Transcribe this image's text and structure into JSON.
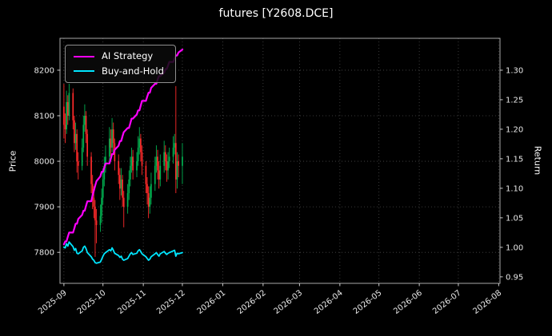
{
  "title": "futures [Y2608.DCE]",
  "colors": {
    "background": "#000000",
    "text": "#ffffff",
    "tick_label": "#e8e8e8",
    "grid": "#4a4a4a",
    "spine": "#a8a8a8",
    "candle_up": "#00b050",
    "candle_down": "#ff2a2a"
  },
  "chart_data": {
    "type": "candlestick+line",
    "title": "futures [Y2608.DCE]",
    "grid": true,
    "legend_position": "upper-left",
    "axes": {
      "x": {
        "range": [
          "2025-08-29",
          "2026-08-02"
        ],
        "ticks": [
          {
            "label": "2025-09",
            "date": "2025-09-01"
          },
          {
            "label": "2025-10",
            "date": "2025-10-01"
          },
          {
            "label": "2025-11",
            "date": "2025-11-01"
          },
          {
            "label": "2025-12",
            "date": "2025-12-01"
          },
          {
            "label": "2026-01",
            "date": "2026-01-01"
          },
          {
            "label": "2026-02",
            "date": "2026-02-01"
          },
          {
            "label": "2026-03",
            "date": "2026-03-01"
          },
          {
            "label": "2026-04",
            "date": "2026-04-01"
          },
          {
            "label": "2026-05",
            "date": "2026-05-01"
          },
          {
            "label": "2026-06",
            "date": "2026-06-01"
          },
          {
            "label": "2026-07",
            "date": "2026-07-01"
          },
          {
            "label": "2026-08",
            "date": "2026-08-01"
          }
        ]
      },
      "y_left": {
        "label": "Price",
        "range": [
          7732,
          8270
        ],
        "ticks": [
          {
            "label": "7800",
            "value": 7800
          },
          {
            "label": "7900",
            "value": 7900
          },
          {
            "label": "8000",
            "value": 8000
          },
          {
            "label": "8100",
            "value": 8100
          },
          {
            "label": "8200",
            "value": 8200
          }
        ]
      },
      "y_right": {
        "label": "Return",
        "range": [
          0.939,
          1.354
        ],
        "ticks": [
          {
            "label": "0.95",
            "value": 0.95
          },
          {
            "label": "1.00",
            "value": 1.0
          },
          {
            "label": "1.05",
            "value": 1.05
          },
          {
            "label": "1.10",
            "value": 1.1
          },
          {
            "label": "1.15",
            "value": 1.15
          },
          {
            "label": "1.20",
            "value": 1.2
          },
          {
            "label": "1.25",
            "value": 1.25
          },
          {
            "label": "1.30",
            "value": 1.3
          }
        ]
      }
    },
    "candles": {
      "dates": [
        "2025-09-01",
        "2025-09-02",
        "2025-09-03",
        "2025-09-04",
        "2025-09-05",
        "2025-09-08",
        "2025-09-09",
        "2025-09-10",
        "2025-09-11",
        "2025-09-12",
        "2025-09-15",
        "2025-09-16",
        "2025-09-17",
        "2025-09-18",
        "2025-09-19",
        "2025-09-22",
        "2025-09-23",
        "2025-09-24",
        "2025-09-25",
        "2025-09-26",
        "2025-09-29",
        "2025-09-30",
        "2025-10-01",
        "2025-10-02",
        "2025-10-03",
        "2025-10-06",
        "2025-10-07",
        "2025-10-08",
        "2025-10-09",
        "2025-10-10",
        "2025-10-13",
        "2025-10-14",
        "2025-10-15",
        "2025-10-16",
        "2025-10-17",
        "2025-10-20",
        "2025-10-21",
        "2025-10-22",
        "2025-10-23",
        "2025-10-24",
        "2025-10-27",
        "2025-10-28",
        "2025-10-29",
        "2025-10-30",
        "2025-10-31",
        "2025-11-03",
        "2025-11-04",
        "2025-11-05",
        "2025-11-06",
        "2025-11-07",
        "2025-11-10",
        "2025-11-11",
        "2025-11-12",
        "2025-11-13",
        "2025-11-14",
        "2025-11-17",
        "2025-11-18",
        "2025-11-19",
        "2025-11-20",
        "2025-11-21",
        "2025-11-24",
        "2025-11-25",
        "2025-11-26",
        "2025-11-27",
        "2025-11-28",
        "2025-12-01"
      ],
      "open": [
        8120,
        8080,
        8070,
        8130,
        8100,
        8150,
        8090,
        8040,
        8060,
        8000,
        7990,
        8030,
        8080,
        8100,
        8060,
        8010,
        7950,
        7920,
        7900,
        7870,
        7860,
        7880,
        7920,
        7960,
        7990,
        8010,
        8050,
        8030,
        8070,
        8040,
        8000,
        7970,
        7940,
        7960,
        7920,
        7900,
        7930,
        7960,
        7990,
        8010,
        7980,
        8000,
        8030,
        8050,
        8020,
        7990,
        7950,
        7930,
        7900,
        7920,
        7950,
        7990,
        8010,
        7980,
        7960,
        7990,
        8020,
        8000,
        7980,
        8000,
        8010,
        8030,
        8040,
        7960,
        8000,
        7990
      ],
      "high": [
        8170,
        8105,
        8155,
        8145,
        8170,
        8160,
        8100,
        8085,
        8070,
        8020,
        8050,
        8100,
        8125,
        8110,
        8070,
        8020,
        7970,
        7945,
        7915,
        7895,
        7905,
        7940,
        7985,
        8010,
        8035,
        8075,
        8070,
        8095,
        8085,
        8050,
        8015,
        7985,
        7985,
        7970,
        7935,
        7950,
        7980,
        8010,
        8030,
        8025,
        8020,
        8055,
        8075,
        8060,
        8035,
        8000,
        7965,
        7945,
        7945,
        7975,
        8010,
        8035,
        8025,
        8000,
        8015,
        8045,
        8035,
        8015,
        8020,
        8030,
        8055,
        8060,
        8165,
        8020,
        8015,
        8040
      ],
      "low": [
        8050,
        8040,
        8060,
        8080,
        8090,
        8070,
        8020,
        8025,
        7975,
        7960,
        7980,
        8020,
        8065,
        8040,
        7990,
        7930,
        7895,
        7875,
        7790,
        7820,
        7845,
        7865,
        7905,
        7945,
        7975,
        8000,
        8010,
        8020,
        8020,
        7980,
        7950,
        7915,
        7925,
        7900,
        7855,
        7885,
        7915,
        7945,
        7975,
        7960,
        7965,
        7990,
        8015,
        8000,
        7970,
        7930,
        7905,
        7875,
        7885,
        7905,
        7935,
        7975,
        7960,
        7940,
        7945,
        7975,
        7980,
        7955,
        7960,
        7985,
        7995,
        8015,
        7930,
        7940,
        7965,
        7950
      ],
      "close": [
        8080,
        8070,
        8130,
        8100,
        8150,
        8090,
        8040,
        8060,
        8000,
        7990,
        8030,
        8080,
        8100,
        8060,
        8010,
        7950,
        7920,
        7900,
        7870,
        7860,
        7880,
        7920,
        7960,
        7990,
        8010,
        8050,
        8030,
        8070,
        8040,
        8000,
        7970,
        7940,
        7960,
        7920,
        7900,
        7930,
        7960,
        7990,
        8010,
        7980,
        8000,
        8030,
        8050,
        8020,
        7990,
        7950,
        7930,
        7900,
        7920,
        7950,
        7990,
        8010,
        7980,
        7960,
        7990,
        8020,
        8000,
        7980,
        8000,
        8010,
        8030,
        8040,
        7960,
        8000,
        7990,
        8010
      ]
    },
    "series": [
      {
        "name": "AI Strategy",
        "color": "#ff00ff",
        "axis": "right",
        "values": [
          1.005,
          1.01,
          1.01,
          1.018,
          1.025,
          1.025,
          1.032,
          1.04,
          1.04,
          1.048,
          1.055,
          1.062,
          1.062,
          1.07,
          1.078,
          1.078,
          1.088,
          1.096,
          1.104,
          1.112,
          1.12,
          1.128,
          1.128,
          1.135,
          1.142,
          1.142,
          1.15,
          1.158,
          1.158,
          1.165,
          1.172,
          1.18,
          1.18,
          1.188,
          1.195,
          1.202,
          1.202,
          1.21,
          1.218,
          1.218,
          1.225,
          1.232,
          1.232,
          1.24,
          1.248,
          1.248,
          1.255,
          1.262,
          1.262,
          1.27,
          1.277,
          1.277,
          1.284,
          1.29,
          1.29,
          1.296,
          1.302,
          1.302,
          1.308,
          1.314,
          1.314,
          1.32,
          1.325,
          1.325,
          1.33,
          1.335
        ]
      },
      {
        "name": "Buy-and-Hold",
        "color": "#00e6ff",
        "axis": "right",
        "values": [
          1.0,
          0.999,
          1.006,
          1.002,
          1.009,
          1.001,
          0.995,
          0.998,
          0.99,
          0.989,
          0.994,
          1.0,
          1.002,
          0.998,
          0.991,
          0.984,
          0.98,
          0.978,
          0.974,
          0.973,
          0.975,
          0.98,
          0.985,
          0.989,
          0.991,
          0.996,
          0.994,
          0.999,
          0.995,
          0.99,
          0.986,
          0.983,
          0.985,
          0.98,
          0.978,
          0.981,
          0.985,
          0.989,
          0.991,
          0.988,
          0.99,
          0.994,
          0.996,
          0.993,
          0.989,
          0.984,
          0.981,
          0.978,
          0.98,
          0.984,
          0.989,
          0.991,
          0.988,
          0.985,
          0.989,
          0.993,
          0.99,
          0.988,
          0.99,
          0.991,
          0.994,
          0.995,
          0.985,
          0.99,
          0.989,
          0.991
        ]
      }
    ]
  }
}
